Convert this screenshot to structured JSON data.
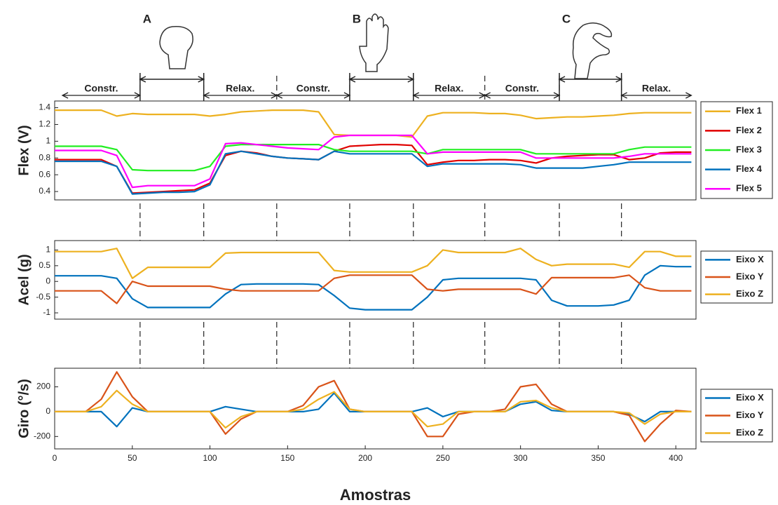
{
  "annotations": {
    "gestures": [
      {
        "label": "A",
        "start": 55,
        "end": 96
      },
      {
        "label": "B",
        "start": 190,
        "end": 231
      },
      {
        "label": "C",
        "start": 325,
        "end": 365
      }
    ],
    "phases": [
      {
        "label": "Constr.",
        "start": 5,
        "end": 55
      },
      {
        "label": "Relax.",
        "start": 96,
        "end": 143
      },
      {
        "label": "Constr.",
        "start": 143,
        "end": 190
      },
      {
        "label": "Relax.",
        "start": 231,
        "end": 277
      },
      {
        "label": "Constr.",
        "start": 277,
        "end": 325
      },
      {
        "label": "Relax.",
        "start": 365,
        "end": 410
      }
    ]
  },
  "chart_data": [
    {
      "type": "line",
      "ylabel": "Flex (V)",
      "xlim": [
        0,
        413
      ],
      "ylim": [
        0.3,
        1.48
      ],
      "yticks": [
        0.4,
        0.6,
        0.8,
        1,
        1.2,
        1.4
      ],
      "legend": "right",
      "x": [
        0,
        10,
        20,
        30,
        40,
        50,
        60,
        70,
        80,
        90,
        100,
        110,
        120,
        130,
        140,
        150,
        160,
        170,
        180,
        190,
        200,
        210,
        220,
        230,
        240,
        250,
        260,
        270,
        280,
        290,
        300,
        310,
        320,
        330,
        340,
        350,
        360,
        370,
        380,
        390,
        400,
        410
      ],
      "series": [
        {
          "name": "Flex 1",
          "color": "#edb120",
          "values": [
            1.37,
            1.37,
            1.37,
            1.37,
            1.3,
            1.33,
            1.32,
            1.32,
            1.32,
            1.32,
            1.3,
            1.32,
            1.35,
            1.36,
            1.37,
            1.37,
            1.37,
            1.35,
            1.08,
            1.07,
            1.07,
            1.07,
            1.07,
            1.05,
            1.3,
            1.34,
            1.34,
            1.34,
            1.33,
            1.33,
            1.31,
            1.27,
            1.28,
            1.29,
            1.29,
            1.3,
            1.31,
            1.33,
            1.34,
            1.34,
            1.34,
            1.34
          ]
        },
        {
          "name": "Flex 2",
          "color": "#e00000",
          "values": [
            0.78,
            0.78,
            0.78,
            0.78,
            0.7,
            0.38,
            0.39,
            0.4,
            0.41,
            0.42,
            0.5,
            0.83,
            0.88,
            0.86,
            0.82,
            0.8,
            0.79,
            0.78,
            0.88,
            0.94,
            0.95,
            0.96,
            0.96,
            0.95,
            0.72,
            0.75,
            0.77,
            0.77,
            0.78,
            0.78,
            0.77,
            0.74,
            0.8,
            0.82,
            0.83,
            0.84,
            0.84,
            0.78,
            0.8,
            0.86,
            0.87,
            0.87
          ]
        },
        {
          "name": "Flex 3",
          "color": "#22ee22",
          "values": [
            0.94,
            0.94,
            0.94,
            0.94,
            0.9,
            0.66,
            0.65,
            0.65,
            0.65,
            0.65,
            0.7,
            0.94,
            0.96,
            0.96,
            0.96,
            0.96,
            0.96,
            0.96,
            0.9,
            0.88,
            0.88,
            0.88,
            0.88,
            0.88,
            0.85,
            0.9,
            0.9,
            0.9,
            0.9,
            0.9,
            0.9,
            0.85,
            0.85,
            0.85,
            0.85,
            0.85,
            0.85,
            0.9,
            0.93,
            0.93,
            0.93,
            0.93
          ]
        },
        {
          "name": "Flex 4",
          "color": "#0072bd",
          "values": [
            0.76,
            0.76,
            0.76,
            0.76,
            0.7,
            0.37,
            0.38,
            0.39,
            0.39,
            0.4,
            0.48,
            0.85,
            0.88,
            0.85,
            0.82,
            0.8,
            0.79,
            0.78,
            0.88,
            0.85,
            0.85,
            0.85,
            0.85,
            0.85,
            0.7,
            0.73,
            0.73,
            0.73,
            0.73,
            0.73,
            0.72,
            0.68,
            0.68,
            0.68,
            0.68,
            0.7,
            0.72,
            0.75,
            0.75,
            0.75,
            0.75,
            0.75
          ]
        },
        {
          "name": "Flex 5",
          "color": "#ff00ff",
          "values": [
            0.89,
            0.89,
            0.89,
            0.89,
            0.83,
            0.45,
            0.47,
            0.47,
            0.47,
            0.47,
            0.55,
            0.97,
            0.98,
            0.96,
            0.94,
            0.92,
            0.91,
            0.9,
            1.05,
            1.07,
            1.07,
            1.07,
            1.07,
            1.07,
            0.85,
            0.87,
            0.87,
            0.87,
            0.87,
            0.87,
            0.87,
            0.8,
            0.8,
            0.8,
            0.8,
            0.8,
            0.8,
            0.82,
            0.85,
            0.85,
            0.85,
            0.85
          ]
        }
      ]
    },
    {
      "type": "line",
      "ylabel": "Acel (g)",
      "xlim": [
        0,
        413
      ],
      "ylim": [
        -1.2,
        1.3
      ],
      "yticks": [
        -1,
        -0.5,
        0,
        0.5,
        1
      ],
      "legend": "right",
      "x": [
        0,
        10,
        20,
        30,
        40,
        50,
        60,
        70,
        80,
        90,
        100,
        110,
        120,
        130,
        140,
        150,
        160,
        170,
        180,
        190,
        200,
        210,
        220,
        230,
        240,
        250,
        260,
        270,
        280,
        290,
        300,
        310,
        320,
        330,
        340,
        350,
        360,
        370,
        380,
        390,
        400,
        410
      ],
      "series": [
        {
          "name": "Eixo X",
          "color": "#0072bd",
          "values": [
            0.18,
            0.18,
            0.18,
            0.18,
            0.1,
            -0.55,
            -0.83,
            -0.83,
            -0.83,
            -0.83,
            -0.83,
            -0.4,
            -0.1,
            -0.08,
            -0.08,
            -0.08,
            -0.08,
            -0.1,
            -0.45,
            -0.85,
            -0.9,
            -0.9,
            -0.9,
            -0.9,
            -0.5,
            0.05,
            0.1,
            0.1,
            0.1,
            0.1,
            0.1,
            0.05,
            -0.6,
            -0.78,
            -0.78,
            -0.78,
            -0.75,
            -0.6,
            0.2,
            0.5,
            0.47,
            0.47
          ]
        },
        {
          "name": "Eixo Y",
          "color": "#d95319",
          "values": [
            -0.3,
            -0.3,
            -0.3,
            -0.3,
            -0.7,
            0,
            -0.15,
            -0.15,
            -0.15,
            -0.15,
            -0.15,
            -0.25,
            -0.3,
            -0.3,
            -0.3,
            -0.3,
            -0.3,
            -0.3,
            0.1,
            0.2,
            0.2,
            0.2,
            0.2,
            0.2,
            -0.25,
            -0.3,
            -0.25,
            -0.25,
            -0.25,
            -0.25,
            -0.25,
            -0.4,
            0.12,
            0.12,
            0.12,
            0.12,
            0.12,
            0.2,
            -0.2,
            -0.3,
            -0.3,
            -0.3
          ]
        },
        {
          "name": "Eixo Z",
          "color": "#edb120",
          "values": [
            0.95,
            0.95,
            0.95,
            0.95,
            1.05,
            0.1,
            0.45,
            0.45,
            0.45,
            0.45,
            0.45,
            0.9,
            0.92,
            0.92,
            0.92,
            0.92,
            0.92,
            0.92,
            0.35,
            0.3,
            0.3,
            0.3,
            0.3,
            0.3,
            0.5,
            1.0,
            0.92,
            0.92,
            0.92,
            0.92,
            1.05,
            0.7,
            0.5,
            0.55,
            0.55,
            0.55,
            0.55,
            0.45,
            0.95,
            0.95,
            0.8,
            0.8
          ]
        }
      ]
    },
    {
      "type": "line",
      "ylabel": "Giro (°/s)",
      "xlabel": "Amostras",
      "xlim": [
        0,
        413
      ],
      "xticks": [
        0,
        50,
        100,
        150,
        200,
        250,
        300,
        350,
        400
      ],
      "ylim": [
        -300,
        350
      ],
      "yticks": [
        -200,
        0,
        200
      ],
      "legend": "right",
      "x": [
        0,
        10,
        20,
        30,
        40,
        50,
        60,
        70,
        80,
        90,
        100,
        110,
        120,
        130,
        140,
        150,
        160,
        170,
        180,
        190,
        200,
        210,
        220,
        230,
        240,
        250,
        260,
        270,
        280,
        290,
        300,
        310,
        320,
        330,
        340,
        350,
        360,
        370,
        380,
        390,
        400,
        410
      ],
      "series": [
        {
          "name": "Eixo X",
          "color": "#0072bd",
          "values": [
            0,
            0,
            0,
            0,
            -120,
            30,
            0,
            0,
            0,
            0,
            0,
            40,
            20,
            0,
            0,
            0,
            0,
            20,
            150,
            0,
            0,
            0,
            0,
            0,
            30,
            -40,
            0,
            0,
            0,
            0,
            60,
            80,
            10,
            0,
            0,
            0,
            0,
            -20,
            -80,
            0,
            0,
            0
          ]
        },
        {
          "name": "Eixo Y",
          "color": "#d95319",
          "values": [
            0,
            0,
            0,
            100,
            320,
            120,
            0,
            0,
            0,
            0,
            0,
            -180,
            -60,
            0,
            0,
            0,
            50,
            200,
            250,
            20,
            0,
            0,
            0,
            0,
            -200,
            -200,
            -20,
            0,
            0,
            20,
            200,
            220,
            60,
            0,
            0,
            0,
            0,
            -30,
            -240,
            -100,
            10,
            0
          ]
        },
        {
          "name": "Eixo Z",
          "color": "#edb120",
          "values": [
            0,
            0,
            0,
            40,
            170,
            60,
            0,
            0,
            0,
            0,
            0,
            -130,
            -40,
            0,
            0,
            0,
            20,
            100,
            160,
            20,
            0,
            0,
            0,
            0,
            -120,
            -100,
            0,
            0,
            0,
            0,
            80,
            90,
            30,
            0,
            0,
            0,
            0,
            -10,
            -100,
            -20,
            0,
            0
          ]
        }
      ]
    }
  ]
}
